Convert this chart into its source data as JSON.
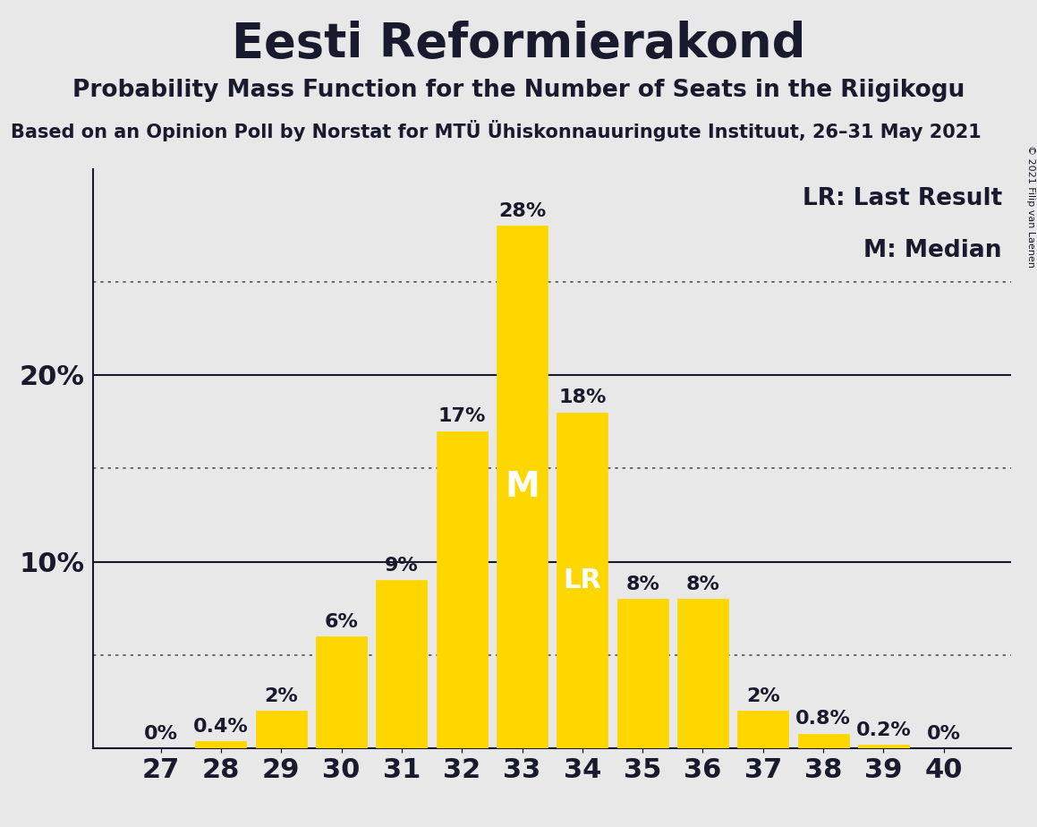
{
  "title": "Eesti Reformierakond",
  "subtitle": "Probability Mass Function for the Number of Seats in the Riigikogu",
  "source": "Based on an Opinion Poll by Norstat for MTÜ Ühiskonnauuringute Instituut, 26–31 May 2021",
  "copyright": "© 2021 Filip van Laenen",
  "categories": [
    27,
    28,
    29,
    30,
    31,
    32,
    33,
    34,
    35,
    36,
    37,
    38,
    39,
    40
  ],
  "values": [
    0.0,
    0.4,
    2.0,
    6.0,
    9.0,
    17.0,
    28.0,
    18.0,
    8.0,
    8.0,
    2.0,
    0.8,
    0.2,
    0.0
  ],
  "labels": [
    "0%",
    "0.4%",
    "2%",
    "6%",
    "9%",
    "17%",
    "28%",
    "18%",
    "8%",
    "8%",
    "2%",
    "0.8%",
    "0.2%",
    "0%"
  ],
  "bar_color": "#FFD700",
  "background_color": "#E8E8E8",
  "median_bar": 33,
  "last_result_bar": 34,
  "legend_lr": "LR: Last Result",
  "legend_m": "M: Median",
  "solid_yticks": [
    10,
    20
  ],
  "dotted_yticks": [
    5,
    15,
    25
  ],
  "title_fontsize": 38,
  "subtitle_fontsize": 19,
  "source_fontsize": 15,
  "bar_label_fontsize": 16,
  "axis_fontsize": 22,
  "legend_fontsize": 19,
  "marker_fontsize_m": 28,
  "marker_fontsize_lr": 22,
  "ymax": 31
}
